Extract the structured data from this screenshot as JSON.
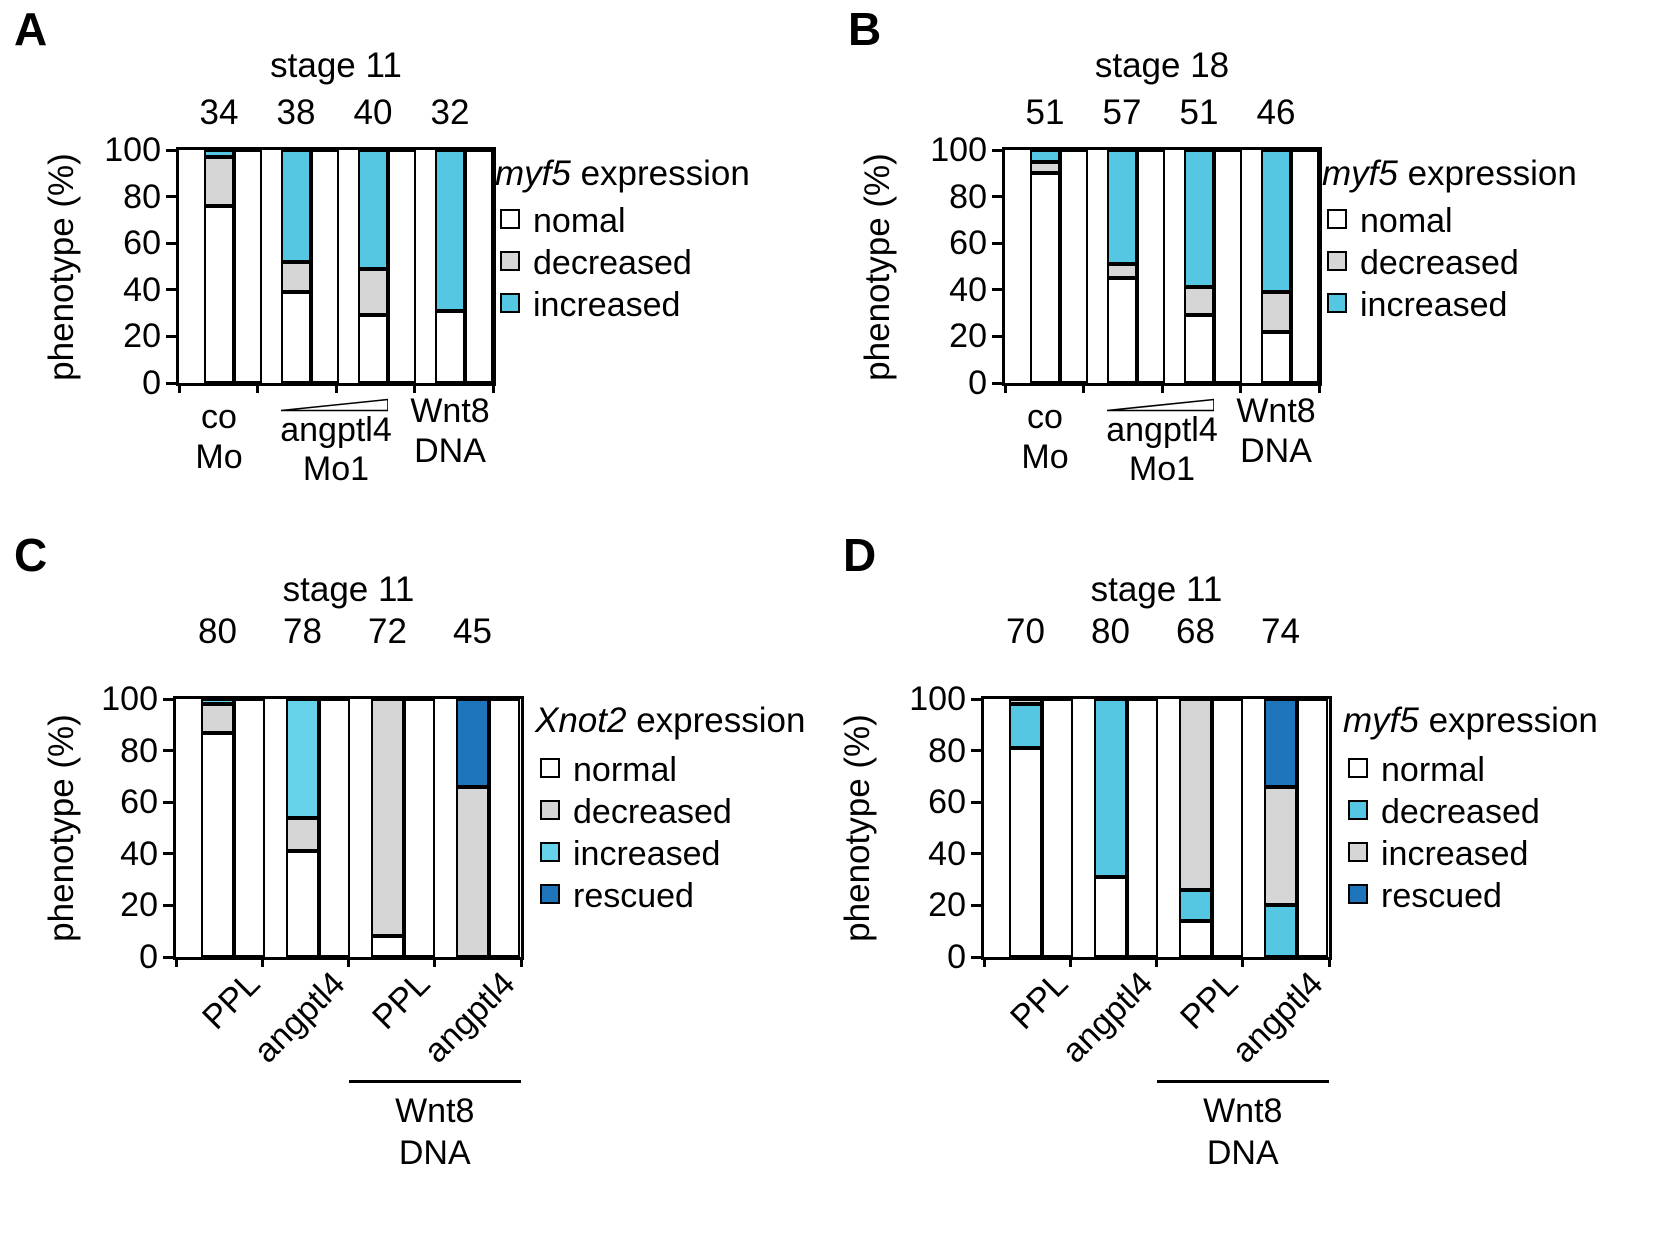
{
  "chart_data": [
    {
      "panel_letter": "A",
      "type": "stacked_bar_100pct",
      "title": "stage 11",
      "ylabel": "phenotype (%)",
      "ylim": [
        0,
        100
      ],
      "yticks": [
        100,
        80,
        60,
        40,
        20,
        0
      ],
      "grid": false,
      "legend_position": "right",
      "sample_sizes": [
        34,
        38,
        40,
        32
      ],
      "categories": [
        "co Mo",
        "angptl4 Mo1 low dose",
        "angptl4 Mo1 high dose",
        "Wnt8 DNA"
      ],
      "legend_title_italic": "myf5",
      "legend_title_rest": " expression",
      "series": [
        {
          "name": "nomal",
          "color": "#FFFFFF",
          "values": [
            76,
            39,
            29,
            31
          ]
        },
        {
          "name": "decreased",
          "color": "#D6D6D6",
          "values": [
            21,
            13,
            20,
            0
          ]
        },
        {
          "name": "increased",
          "color": "#56C7E2",
          "values": [
            3,
            48,
            51,
            69
          ]
        }
      ],
      "x_axis": {
        "style": "grouped",
        "group1": [
          "co",
          "Mo"
        ],
        "mid_label": "angptl4",
        "mid_sub": "Mo1",
        "mid_wedge": "increasing-dose-wedge",
        "group4": [
          "Wnt8",
          "DNA"
        ]
      }
    },
    {
      "panel_letter": "B",
      "type": "stacked_bar_100pct",
      "title": "stage 18",
      "ylabel": "phenotype (%)",
      "ylim": [
        0,
        100
      ],
      "yticks": [
        100,
        80,
        60,
        40,
        20,
        0
      ],
      "grid": false,
      "legend_position": "right",
      "sample_sizes": [
        51,
        57,
        51,
        46
      ],
      "categories": [
        "co Mo",
        "angptl4 Mo1 low dose",
        "angptl4 Mo1 high dose",
        "Wnt8 DNA"
      ],
      "legend_title_italic": "myf5",
      "legend_title_rest": " expression",
      "series": [
        {
          "name": "nomal",
          "color": "#FFFFFF",
          "values": [
            90,
            45,
            29,
            22
          ]
        },
        {
          "name": "decreased",
          "color": "#D6D6D6",
          "values": [
            5,
            6,
            12,
            17
          ]
        },
        {
          "name": "increased",
          "color": "#56C7E2",
          "values": [
            5,
            49,
            59,
            61
          ]
        }
      ],
      "x_axis": {
        "style": "grouped",
        "group1": [
          "co",
          "Mo"
        ],
        "mid_label": "angptl4",
        "mid_sub": "Mo1",
        "mid_wedge": "increasing-dose-wedge",
        "group4": [
          "Wnt8",
          "DNA"
        ]
      }
    },
    {
      "panel_letter": "C",
      "type": "stacked_bar_100pct",
      "title": "stage 11",
      "ylabel": "phenotype (%)",
      "ylim": [
        0,
        100
      ],
      "yticks": [
        100,
        80,
        60,
        40,
        20,
        0
      ],
      "grid": false,
      "legend_position": "right",
      "sample_sizes": [
        80,
        78,
        72,
        45
      ],
      "categories": [
        "PPL",
        "angptl4",
        "PPL",
        "angptl4"
      ],
      "legend_title_italic": "Xnot2",
      "legend_title_rest": " expression",
      "series": [
        {
          "name": "normal",
          "color": "#FFFFFF",
          "values": [
            87,
            41,
            8,
            0
          ]
        },
        {
          "name": "decreased",
          "color": "#D6D6D6",
          "values": [
            11,
            13,
            92,
            66
          ]
        },
        {
          "name": "increased",
          "color": "#66D2EA",
          "values": [
            2,
            46,
            0,
            0
          ]
        },
        {
          "name": "rescued",
          "color": "#1F75BC",
          "values": [
            0,
            0,
            0,
            34
          ]
        }
      ],
      "x_axis": {
        "style": "rotated",
        "labels": [
          "PPL",
          "angptl4",
          "PPL",
          "angptl4"
        ],
        "footer": [
          "Wnt8",
          "DNA"
        ],
        "footer_spans": "last-two-groups"
      }
    },
    {
      "panel_letter": "D",
      "type": "stacked_bar_100pct",
      "title": "stage 11",
      "ylabel": "phenotype (%)",
      "ylim": [
        0,
        100
      ],
      "yticks": [
        100,
        80,
        60,
        40,
        20,
        0
      ],
      "grid": false,
      "legend_position": "right",
      "sample_sizes": [
        70,
        80,
        68,
        74
      ],
      "categories": [
        "PPL",
        "angptl4",
        "PPL",
        "angptl4"
      ],
      "legend_title_italic": "myf5",
      "legend_title_rest": " expression",
      "series": [
        {
          "name": "normal",
          "color": "#FFFFFF",
          "values": [
            81,
            31,
            14,
            0
          ]
        },
        {
          "name": "decreased",
          "color": "#56C7E2",
          "values": [
            17,
            69,
            12,
            20
          ]
        },
        {
          "name": "increased",
          "color": "#D6D6D6",
          "values": [
            2,
            0,
            74,
            46
          ]
        },
        {
          "name": "rescued",
          "color": "#1F75BC",
          "values": [
            0,
            0,
            0,
            34
          ]
        }
      ],
      "x_axis": {
        "style": "rotated",
        "labels": [
          "PPL",
          "angptl4",
          "PPL",
          "angptl4"
        ],
        "footer": [
          "Wnt8",
          "DNA"
        ],
        "footer_spans": "last-two-groups"
      }
    }
  ]
}
